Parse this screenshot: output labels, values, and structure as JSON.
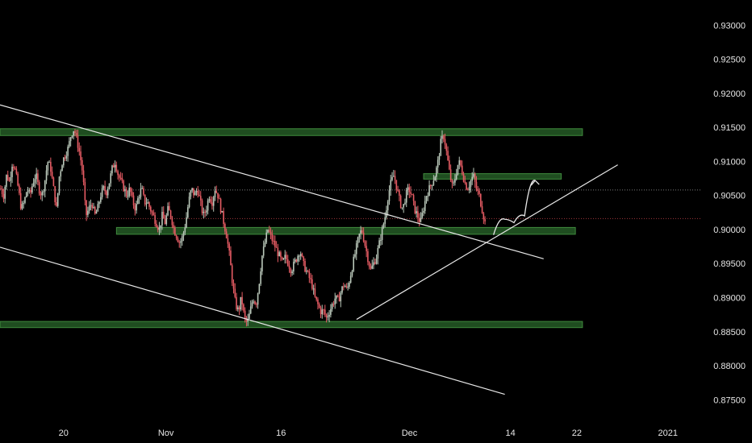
{
  "chart_data": {
    "type": "candlestick",
    "y_axis": {
      "ticks": [
        "0.93000",
        "0.92500",
        "0.92000",
        "0.91500",
        "0.91000",
        "0.90500",
        "0.90000",
        "0.89500",
        "0.89000",
        "0.88500",
        "0.88000",
        "0.87500"
      ],
      "ylim": [
        0.8722,
        0.9337
      ]
    },
    "x_axis": {
      "ticks": [
        "20",
        "Nov",
        "16",
        "Dec",
        "14",
        "22",
        "2021"
      ]
    },
    "grid": false,
    "reference_lines": {
      "dotted_grey_level": 0.9058,
      "dotted_red_level": 0.9016
    },
    "price_path": [
      [
        0.906,
        0.905,
        0.908,
        0.907,
        0.91,
        0.9085,
        0.906,
        0.903,
        0.904,
        0.906
      ],
      [
        0.905,
        0.907,
        0.908,
        0.906,
        0.905,
        0.907,
        0.91,
        0.909,
        0.906,
        0.903
      ],
      [
        0.908,
        0.91,
        0.911,
        0.912,
        0.914,
        0.9148,
        0.913,
        0.911,
        0.908,
        0.902
      ],
      [
        0.903,
        0.904,
        0.902,
        0.903,
        0.905,
        0.906,
        0.9055,
        0.907,
        0.909,
        0.91
      ],
      [
        0.908,
        0.907,
        0.906,
        0.905,
        0.906,
        0.904,
        0.903,
        0.905,
        0.906,
        0.904
      ],
      [
        0.904,
        0.903,
        0.902,
        0.901,
        0.9,
        0.902,
        0.901,
        0.903,
        0.902,
        0.9
      ],
      [
        0.899,
        0.898,
        0.899,
        0.901,
        0.904,
        0.906,
        0.905,
        0.906,
        0.904,
        0.902
      ],
      [
        0.903,
        0.905,
        0.904,
        0.906,
        0.905,
        0.903,
        0.901,
        0.899,
        0.896,
        0.892
      ],
      [
        0.889,
        0.888,
        0.89,
        0.887,
        0.8862,
        0.888,
        0.89,
        0.889,
        0.892,
        0.896
      ],
      [
        0.898,
        0.9,
        0.899,
        0.898,
        0.897,
        0.896,
        0.895,
        0.896,
        0.895,
        0.894
      ],
      [
        0.895,
        0.896,
        0.897,
        0.895,
        0.894,
        0.893,
        0.892,
        0.89,
        0.889,
        0.888
      ],
      [
        0.888,
        0.887,
        0.888,
        0.889,
        0.89,
        0.8895,
        0.891,
        0.892,
        0.891,
        0.893
      ],
      [
        0.895,
        0.897,
        0.899,
        0.9,
        0.898,
        0.896,
        0.894,
        0.895,
        0.896,
        0.898
      ],
      [
        0.9,
        0.902,
        0.905,
        0.907,
        0.908,
        0.906,
        0.904,
        0.903,
        0.905,
        0.906
      ],
      [
        0.905,
        0.903,
        0.902,
        0.901,
        0.903,
        0.905,
        0.906,
        0.907,
        0.908,
        0.91
      ],
      [
        0.913,
        0.9138,
        0.911,
        0.908,
        0.906,
        0.908,
        0.91,
        0.909,
        0.907,
        0.906
      ],
      [
        0.907,
        0.908,
        0.906,
        0.905,
        0.903,
        0.901
      ]
    ],
    "zones": [
      {
        "level_top": 0.9148,
        "level_bottom": 0.9138,
        "x_start_day": 0,
        "x_end_day": 82.5
      },
      {
        "level_top": 0.9082,
        "level_bottom": 0.9074,
        "x_start_day": 60.0,
        "x_end_day": 79.5
      },
      {
        "level_top": 0.9003,
        "level_bottom": 0.8993,
        "x_start_day": 16.5,
        "x_end_day": 81.5
      },
      {
        "level_top": 0.8865,
        "level_bottom": 0.8856,
        "x_start_day": 0,
        "x_end_day": 82.5
      }
    ],
    "trendlines": [
      {
        "from": [
          0.0,
          0.9183
        ],
        "to": [
          77.0,
          0.8957
        ]
      },
      {
        "from": [
          0.0,
          0.8974
        ],
        "to": [
          71.5,
          0.8758
        ]
      },
      {
        "from": [
          50.5,
          0.8868
        ],
        "to": [
          87.5,
          0.9095
        ]
      }
    ],
    "projection_path": [
      [
        69.9,
        0.8992
      ],
      [
        71.5,
        0.9015
      ],
      [
        72.8,
        0.901
      ],
      [
        74.3,
        0.902
      ],
      [
        75.8,
        0.9072
      ]
    ],
    "colors": {
      "background": "#000000",
      "up_candle": "#b9c7b9",
      "down_candle": "#e55b63",
      "zone_fill": "#1f4d20",
      "zone_stroke": "#3f8a3d",
      "trendline": "#e8e8e8",
      "axis_text": "#e6e6e6",
      "grey_dotted": "#7a7a7a",
      "red_dotted": "#a0363c"
    }
  }
}
